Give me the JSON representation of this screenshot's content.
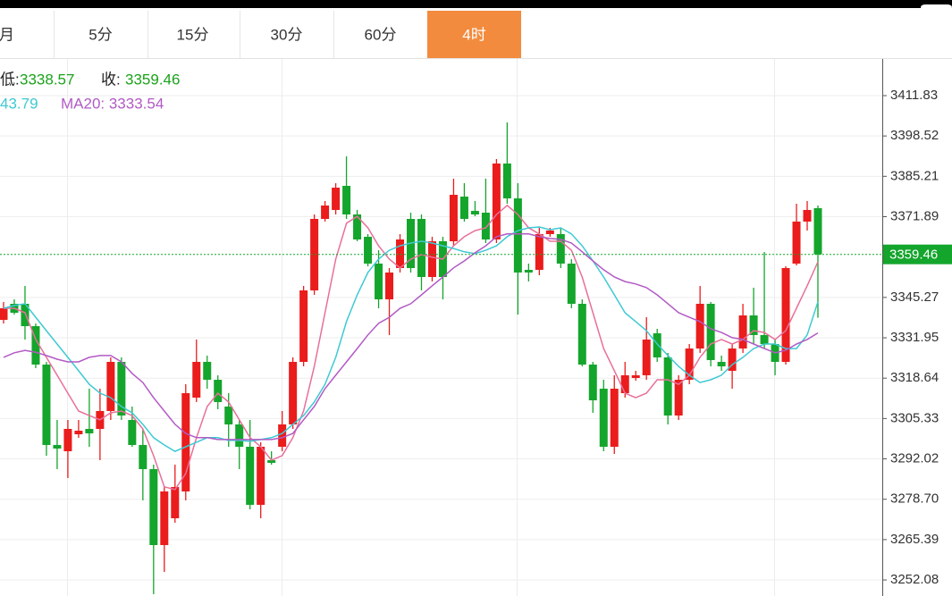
{
  "tabs": {
    "items": [
      "月",
      "5分",
      "15分",
      "30分",
      "60分",
      "4时"
    ],
    "active": 5
  },
  "info": {
    "low_label": "低:",
    "low": "3338.57",
    "close_label": "收:",
    "close": "3359.46",
    "ma10_value": "43.79",
    "ma20": "MA20: 3333.54"
  },
  "chart_data": {
    "type": "candlestick",
    "up_color": "#ea1c1c",
    "down_color": "#14a52c",
    "open": [
      3337.86,
      3343.16,
      3343.16,
      3335.79,
      3323.12,
      3296.6,
      3294.54,
      3300.13,
      3301.9,
      3301.9,
      3307.8,
      3324.01,
      3304.85,
      3296.6,
      3288.64,
      3263.59,
      3272.43,
      3281.27,
      3312.22,
      3324.01,
      3318.11,
      3309.27,
      3303.38,
      3296.01,
      3276.86,
      3291.59,
      3296.01,
      3303.38,
      3324.01,
      3347.58,
      3371.16,
      3374.11,
      3382.06,
      3372.63,
      3365.27,
      3356.42,
      3344.63,
      3354.95,
      3371.16,
      3371.16,
      3352.0,
      3363.79,
      3363.79,
      3378.52,
      3373.81,
      3373.22,
      3364.38,
      3389.43,
      3377.93,
      3354.36,
      3354.36,
      3366.15,
      3366.15,
      3356.42,
      3343.16,
      3323.12,
      3315.17,
      3296.01,
      3313.69,
      3318.7,
      3319.59,
      3333.44,
      3325.48,
      3306.32,
      3318.11,
      3328.42,
      3343.16,
      3324.01,
      3321.06,
      3328.42,
      3339.33,
      3332.85,
      3329.9,
      3324.01,
      3356.42,
      3370.28,
      3374.7
    ],
    "high": [
      3343.75,
      3344.63,
      3349.06,
      3336.68,
      3324.01,
      3304.85,
      3304.85,
      3304.85,
      3315.17,
      3315.17,
      3325.48,
      3325.48,
      3309.27,
      3301.9,
      3290.12,
      3282.75,
      3290.12,
      3316.64,
      3331.37,
      3326.07,
      3319.59,
      3313.69,
      3304.85,
      3304.85,
      3297.49,
      3294.54,
      3307.8,
      3325.48,
      3349.06,
      3372.63,
      3377.05,
      3382.95,
      3391.79,
      3374.11,
      3366.15,
      3360.84,
      3354.95,
      3366.15,
      3373.22,
      3372.63,
      3365.27,
      3365.27,
      3384.42,
      3382.95,
      3377.05,
      3384.42,
      3390.9,
      3402.99,
      3382.95,
      3356.42,
      3368.21,
      3368.21,
      3368.21,
      3357.9,
      3344.63,
      3324.01,
      3318.11,
      3319.59,
      3324.01,
      3321.06,
      3338.74,
      3334.91,
      3326.95,
      3319.59,
      3329.9,
      3349.06,
      3343.75,
      3326.07,
      3329.9,
      3343.16,
      3348.47,
      3360.25,
      3331.37,
      3355.54,
      3376.17,
      3377.05,
      3375.58
    ],
    "low": [
      3336.68,
      3339.62,
      3331.37,
      3321.94,
      3293.06,
      3288.64,
      3285.7,
      3298.96,
      3296.01,
      3291.59,
      3304.85,
      3304.85,
      3296.01,
      3278.33,
      3247.39,
      3254.75,
      3270.96,
      3278.33,
      3310.75,
      3315.17,
      3308.38,
      3296.01,
      3288.64,
      3275.37,
      3272.43,
      3290.12,
      3294.54,
      3301.9,
      3322.53,
      3346.11,
      3370.28,
      3372.63,
      3371.16,
      3363.79,
      3355.54,
      3341.69,
      3332.85,
      3353.48,
      3353.48,
      3347.58,
      3350.53,
      3344.63,
      3362.31,
      3370.28,
      3372.04,
      3363.2,
      3363.2,
      3376.17,
      3339.62,
      3350.53,
      3352.59,
      3365.27,
      3354.95,
      3341.69,
      3322.53,
      3307.21,
      3294.54,
      3293.65,
      3312.22,
      3317.82,
      3318.11,
      3324.01,
      3303.38,
      3304.85,
      3316.64,
      3326.95,
      3322.53,
      3321.06,
      3315.17,
      3326.95,
      3329.9,
      3328.42,
      3319.59,
      3323.12,
      3355.83,
      3367.33,
      3338.57
    ],
    "close": [
      3341.69,
      3340.21,
      3335.79,
      3323.12,
      3296.6,
      3295.42,
      3301.9,
      3301.31,
      3300.43,
      3307.8,
      3324.01,
      3306.32,
      3296.6,
      3288.64,
      3263.59,
      3281.27,
      3282.75,
      3313.69,
      3324.01,
      3318.11,
      3310.75,
      3303.38,
      3296.01,
      3276.86,
      3296.01,
      3290.71,
      3303.38,
      3324.01,
      3347.58,
      3371.16,
      3375.58,
      3381.47,
      3372.63,
      3364.38,
      3356.42,
      3344.63,
      3353.48,
      3364.38,
      3354.95,
      3352.0,
      3363.79,
      3352.0,
      3379.11,
      3371.16,
      3372.63,
      3364.38,
      3389.43,
      3377.93,
      3353.48,
      3353.48,
      3366.15,
      3367.33,
      3356.42,
      3343.16,
      3323.12,
      3311.33,
      3296.01,
      3315.17,
      3319.59,
      3319.59,
      3331.37,
      3325.48,
      3306.32,
      3318.11,
      3328.42,
      3343.16,
      3324.6,
      3322.53,
      3328.42,
      3339.33,
      3332.85,
      3329.9,
      3324.01,
      3354.95,
      3370.28,
      3374.11,
      3359.46
    ],
    "ma_lines": [
      {
        "color": "#e8709a",
        "values": [
          3341.7,
          3341.7,
          3340.2,
          3331.4,
          3325.5,
          3319.6,
          3313.7,
          3307.8,
          3306.3,
          3304.9,
          3307.2,
          3307.8,
          3306.3,
          3301.9,
          3293.1,
          3282.8,
          3281.9,
          3287.2,
          3299.0,
          3309.3,
          3313.7,
          3310.8,
          3304.9,
          3299.0,
          3296.0,
          3291.6,
          3293.1,
          3299.0,
          3307.8,
          3322.5,
          3340.2,
          3357.9,
          3369.7,
          3372.0,
          3368.2,
          3362.3,
          3357.9,
          3355.0,
          3357.9,
          3359.4,
          3358.5,
          3357.9,
          3362.3,
          3365.3,
          3367.3,
          3368.2,
          3372.6,
          3375.6,
          3372.6,
          3368.2,
          3366.2,
          3363.8,
          3363.8,
          3360.8,
          3352.0,
          3340.2,
          3328.4,
          3321.1,
          3313.7,
          3312.2,
          3313.7,
          3318.1,
          3318.1,
          3316.6,
          3319.6,
          3325.5,
          3329.9,
          3331.4,
          3329.9,
          3331.4,
          3334.3,
          3333.7,
          3331.4,
          3334.3,
          3341.7,
          3349.1,
          3357.0
        ]
      },
      {
        "color": "#3ec9d3",
        "values": [
          3341.7,
          3342.6,
          3343.2,
          3338.7,
          3334.3,
          3329.9,
          3325.5,
          3321.1,
          3316.6,
          3313.7,
          3312.2,
          3309.3,
          3307.2,
          3303.4,
          3299.0,
          3296.6,
          3294.5,
          3296.0,
          3297.5,
          3299.0,
          3299.0,
          3298.1,
          3298.1,
          3297.8,
          3298.4,
          3299.0,
          3300.4,
          3303.4,
          3306.3,
          3310.8,
          3316.6,
          3325.5,
          3337.3,
          3346.1,
          3353.5,
          3357.9,
          3360.8,
          3362.3,
          3363.2,
          3363.8,
          3363.2,
          3362.3,
          3361.4,
          3360.3,
          3359.7,
          3360.8,
          3362.3,
          3365.3,
          3367.3,
          3368.2,
          3368.5,
          3367.6,
          3368.2,
          3366.2,
          3362.3,
          3357.3,
          3352.0,
          3346.1,
          3340.2,
          3337.3,
          3334.3,
          3329.9,
          3326.1,
          3322.5,
          3319.6,
          3317.2,
          3318.1,
          3319.6,
          3323.1,
          3325.5,
          3328.4,
          3329.9,
          3329.9,
          3328.4,
          3328.4,
          3332.9,
          3343.8
        ]
      },
      {
        "color": "#b25ac4",
        "values": [
          3325.5,
          3327.0,
          3327.8,
          3327.2,
          3326.1,
          3324.9,
          3324.0,
          3324.0,
          3325.5,
          3326.1,
          3326.1,
          3324.0,
          3320.2,
          3317.2,
          3312.2,
          3307.8,
          3303.4,
          3300.4,
          3299.0,
          3299.0,
          3298.4,
          3298.4,
          3298.4,
          3298.4,
          3298.4,
          3298.4,
          3299.0,
          3300.4,
          3304.9,
          3309.3,
          3315.2,
          3319.6,
          3324.0,
          3328.4,
          3332.9,
          3336.7,
          3338.7,
          3341.7,
          3343.2,
          3346.1,
          3349.1,
          3352.0,
          3355.0,
          3357.3,
          3360.0,
          3362.3,
          3365.3,
          3366.2,
          3366.2,
          3366.2,
          3365.3,
          3364.7,
          3364.4,
          3363.2,
          3360.3,
          3357.3,
          3354.4,
          3352.0,
          3350.5,
          3349.7,
          3348.5,
          3346.1,
          3343.2,
          3340.2,
          3338.7,
          3337.3,
          3334.9,
          3333.7,
          3332.0,
          3331.4,
          3329.9,
          3328.4,
          3327.0,
          3327.8,
          3329.9,
          3331.4,
          3333.54
        ]
      }
    ],
    "last_price": 3359.46,
    "last_price_color": "#14a52c",
    "ylim": [
      3246.79,
      3423.91
    ],
    "yticks": [
      3411.83,
      3398.52,
      3385.21,
      3371.89,
      3345.27,
      3331.95,
      3318.64,
      3305.33,
      3292.02,
      {
        "value": 3278.7,
        "label": "3278.70"
      },
      3265.39,
      3252.08
    ],
    "grid": true
  }
}
